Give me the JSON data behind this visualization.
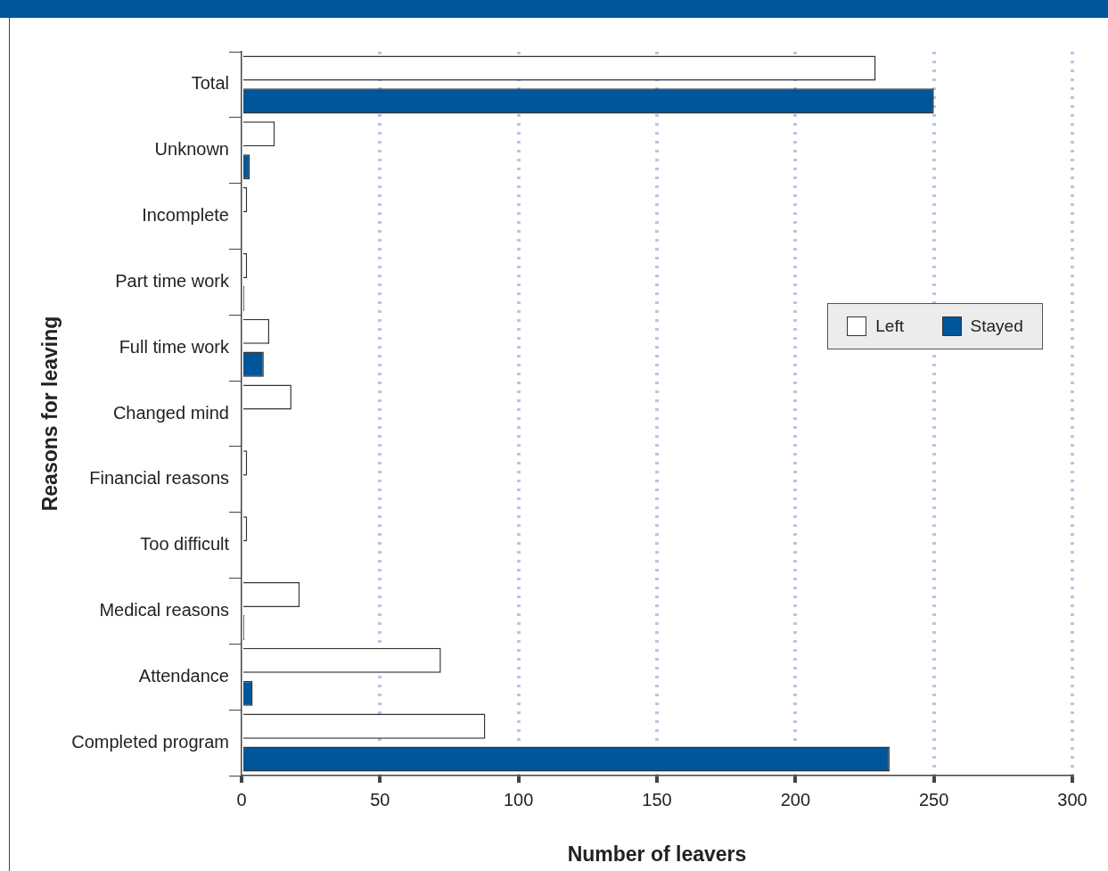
{
  "chart_data": {
    "type": "bar",
    "orientation": "horizontal",
    "xlabel": "Number of leavers",
    "ylabel": "Reasons for leaving",
    "categories": [
      "Total",
      "Unknown",
      "Incomplete",
      "Part time work",
      "Full time work",
      "Changed mind",
      "Financial reasons",
      "Too difficult",
      "Medical reasons",
      "Attendance",
      "Completed program"
    ],
    "series": [
      {
        "name": "Left",
        "color": "#ffffff",
        "values": [
          229,
          12,
          2,
          2,
          10,
          18,
          2,
          2,
          21,
          72,
          88
        ]
      },
      {
        "name": "Stayed",
        "color": "#00569a",
        "values": [
          250,
          3,
          0,
          1,
          8,
          0,
          0,
          0,
          1,
          4,
          234
        ]
      }
    ],
    "xlim": [
      0,
      300
    ],
    "xticks": [
      0,
      50,
      100,
      150,
      200,
      250,
      300
    ],
    "grid": "x",
    "legend": "right"
  }
}
